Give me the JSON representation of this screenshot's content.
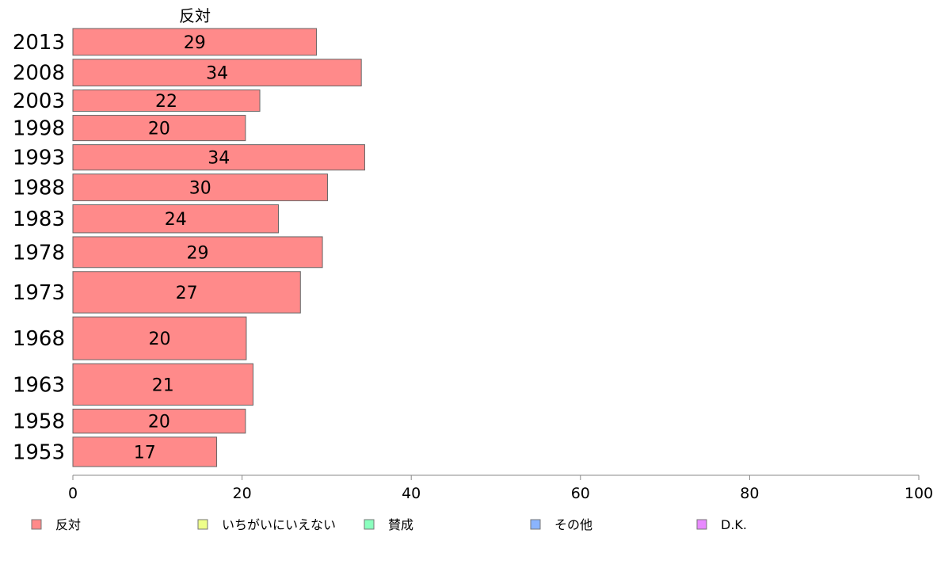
{
  "chart_data": {
    "type": "bar",
    "orientation": "horizontal",
    "series_title": "反対",
    "categories": [
      "2013",
      "2008",
      "2003",
      "1998",
      "1993",
      "1988",
      "1983",
      "1978",
      "1973",
      "1968",
      "1963",
      "1958",
      "1953"
    ],
    "values": [
      29,
      34,
      22,
      20,
      34,
      30,
      24,
      29,
      27,
      20,
      21,
      20,
      17
    ],
    "bar_values": [
      28.8,
      34.1,
      22.1,
      20.4,
      34.5,
      30.1,
      24.3,
      29.5,
      26.9,
      20.5,
      21.3,
      20.4,
      17.0
    ],
    "bar_widths": [
      1.0,
      1.0,
      0.8,
      0.95,
      0.95,
      1.0,
      1.05,
      1.15,
      1.55,
      1.6,
      1.55,
      0.9,
      1.1
    ],
    "xlim": [
      0,
      100
    ],
    "xticks": [
      "0",
      "20",
      "40",
      "60",
      "80",
      "100"
    ],
    "grid": false,
    "bar_color": "#ff8a8a",
    "legend_position": "bottom",
    "legend": [
      {
        "label": "反対",
        "color": "#ff8a8a"
      },
      {
        "label": "いちがいにいえない",
        "color": "#eeff8a"
      },
      {
        "label": "賛成",
        "color": "#8affbe"
      },
      {
        "label": "その他",
        "color": "#8ab4ff"
      },
      {
        "label": "D.K.",
        "color": "#e88aff"
      }
    ]
  }
}
